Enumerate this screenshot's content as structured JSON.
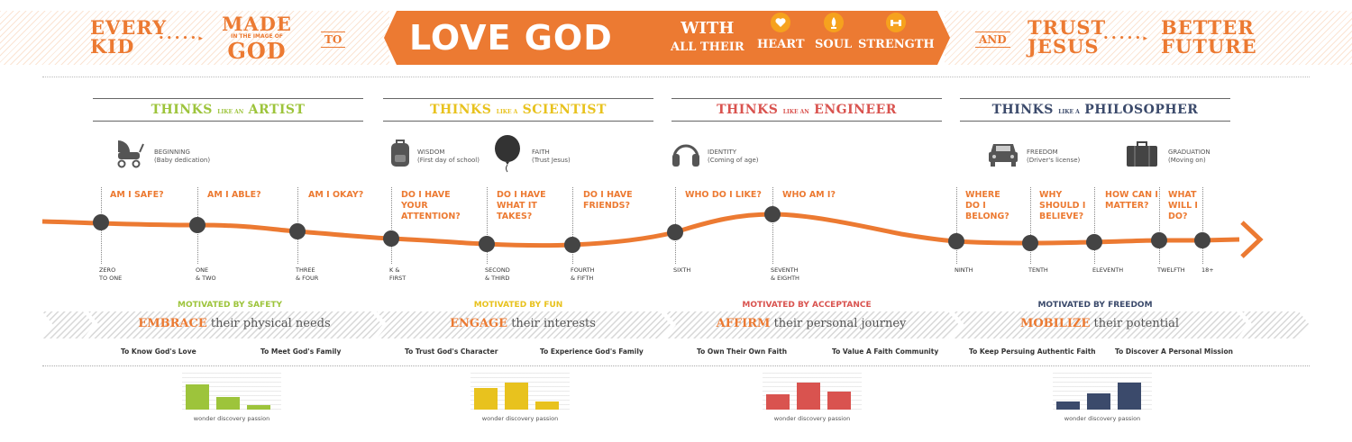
{
  "banner": {
    "every": "EVERY",
    "kid": "KID",
    "made": "MADE",
    "image_of": "IN THE IMAGE OF",
    "god": "GOD",
    "to": "TO",
    "love_god": "LOVE GOD",
    "with": "WITH",
    "all_their": "ALL THEIR",
    "heart": "HEART",
    "soul": "SOUL",
    "strength": "STRENGTH",
    "and": "AND",
    "trust": "TRUST",
    "jesus": "JESUS",
    "better": "BETTER",
    "future": "FUTURE",
    "dots": "• • • • • ▸"
  },
  "colors": {
    "orange": "#ec7a32",
    "artist": "#9dc43b",
    "scientist": "#e8c21e",
    "engineer": "#d9534f",
    "philosopher": "#3b4a6b"
  },
  "columns": [
    {
      "thinks": "THINKS",
      "like": "LIKE AN",
      "role": "ARTIST",
      "motivated": "MOTIVATED BY SAFETY",
      "verb": "EMBRACE",
      "rest": " their physical needs",
      "goals": [
        "To Know God's Love",
        "To Meet God's Family"
      ],
      "bars": [
        0.7,
        0.35,
        0.12
      ],
      "color": "#9dc43b"
    },
    {
      "thinks": "THINKS",
      "like": "LIKE A",
      "role": "SCIENTIST",
      "motivated": "MOTIVATED BY FUN",
      "verb": "ENGAGE",
      "rest": " their interests",
      "goals": [
        "To Trust God's Character",
        "To Experience God's Family"
      ],
      "bars": [
        0.6,
        0.75,
        0.22
      ],
      "color": "#e8c21e"
    },
    {
      "thinks": "THINKS",
      "like": "LIKE AN",
      "role": "ENGINEER",
      "motivated": "MOTIVATED BY ACCEPTANCE",
      "verb": "AFFIRM",
      "rest": " their personal journey",
      "goals": [
        "To Own Their Own Faith",
        "To Value A Faith Community"
      ],
      "bars": [
        0.42,
        0.75,
        0.5
      ],
      "color": "#d9534f"
    },
    {
      "thinks": "THINKS",
      "like": "LIKE A",
      "role": "PHILOSOPHER",
      "motivated": "MOTIVATED BY FREEDOM",
      "verb": "MOBILIZE",
      "rest": " their potential",
      "goals": [
        "To Keep Persuing Authentic Faith",
        "To Discover A Personal Mission"
      ],
      "bars": [
        0.22,
        0.45,
        0.75
      ],
      "color": "#3b4a6b"
    }
  ],
  "bar_labels": [
    "wonder",
    "discovery",
    "passion"
  ],
  "milestones": [
    {
      "title": "BEGINNING",
      "sub": "(Baby dedication)",
      "icon": "stroller-icon"
    },
    {
      "title": "WISDOM",
      "sub": "(First day of school)",
      "icon": "backpack-icon"
    },
    {
      "title": "FAITH",
      "sub": "(Trust Jesus)",
      "icon": "balloon-icon"
    },
    {
      "title": "IDENTITY",
      "sub": "(Coming of age)",
      "icon": "headphones-icon"
    },
    {
      "title": "FREEDOM",
      "sub": "(Driver's license)",
      "icon": "car-icon"
    },
    {
      "title": "GRADUATION",
      "sub": "(Moving on)",
      "icon": "suitcase-icon"
    }
  ],
  "questions": [
    "AM I SAFE?",
    "AM I ABLE?",
    "AM I OKAY?",
    "DO I HAVE YOUR ATTENTION?",
    "DO I HAVE WHAT IT TAKES?",
    "DO I HAVE FRIENDS?",
    "WHO DO I LIKE?",
    "WHO AM I?",
    "WHERE DO I BELONG?",
    "WHY SHOULD I BELIEVE?",
    "HOW CAN I MATTER?",
    "WHAT WILL I DO?"
  ],
  "grades": [
    [
      "ZERO",
      "TO ONE"
    ],
    [
      "ONE",
      "& TWO"
    ],
    [
      "THREE",
      "& FOUR"
    ],
    [
      "K &",
      "FIRST"
    ],
    [
      "SECOND",
      "& THIRD"
    ],
    [
      "FOURTH",
      "& FIFTH"
    ],
    [
      "SIXTH",
      ""
    ],
    [
      "SEVENTH",
      "& EIGHTH"
    ],
    [
      "NINTH",
      ""
    ],
    [
      "TENTH",
      ""
    ],
    [
      "ELEVENTH",
      ""
    ],
    [
      "TWELFTH",
      ""
    ],
    [
      "18+",
      ""
    ]
  ]
}
